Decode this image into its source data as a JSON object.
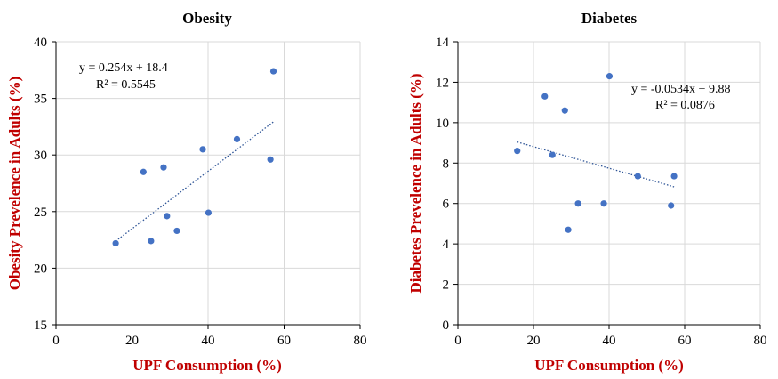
{
  "chart_data": [
    {
      "type": "scatter",
      "title": "Obesity",
      "xlabel": "UPF Consumption (%)",
      "ylabel": "Obesity Prevelence in Adults (%)",
      "xlim": [
        0,
        80
      ],
      "ylim": [
        15,
        40
      ],
      "xticks": [
        0,
        20,
        40,
        60,
        80
      ],
      "yticks": [
        15,
        20,
        25,
        30,
        35,
        40
      ],
      "grid": true,
      "points": [
        {
          "x": 15.7,
          "y": 22.2
        },
        {
          "x": 23.0,
          "y": 28.5
        },
        {
          "x": 25.0,
          "y": 22.4
        },
        {
          "x": 28.3,
          "y": 28.9
        },
        {
          "x": 29.2,
          "y": 24.6
        },
        {
          "x": 31.8,
          "y": 23.3
        },
        {
          "x": 38.6,
          "y": 30.5
        },
        {
          "x": 40.1,
          "y": 24.9
        },
        {
          "x": 47.6,
          "y": 31.4
        },
        {
          "x": 56.4,
          "y": 29.6
        },
        {
          "x": 57.2,
          "y": 37.4
        }
      ],
      "trendline": {
        "slope": 0.254,
        "intercept": 18.4,
        "x_range": [
          15.7,
          57.2
        ]
      },
      "equation": "y = 0.254x + 18.4",
      "r_squared": "R² = 0.5545"
    },
    {
      "type": "scatter",
      "title": "Diabetes",
      "xlabel": "UPF Consumption (%)",
      "ylabel": "Diabetes Prevelence in Adults (%)",
      "xlim": [
        0,
        80
      ],
      "ylim": [
        0,
        14
      ],
      "xticks": [
        0,
        20,
        40,
        60,
        80
      ],
      "yticks": [
        0,
        2,
        4,
        6,
        8,
        10,
        12,
        14
      ],
      "grid": true,
      "points": [
        {
          "x": 15.7,
          "y": 8.6
        },
        {
          "x": 23.0,
          "y": 11.3
        },
        {
          "x": 25.0,
          "y": 8.4
        },
        {
          "x": 28.3,
          "y": 10.6
        },
        {
          "x": 29.2,
          "y": 4.7
        },
        {
          "x": 31.8,
          "y": 6.0
        },
        {
          "x": 38.6,
          "y": 6.0
        },
        {
          "x": 40.1,
          "y": 12.3
        },
        {
          "x": 47.6,
          "y": 7.35
        },
        {
          "x": 56.4,
          "y": 5.9
        },
        {
          "x": 57.2,
          "y": 7.35
        }
      ],
      "trendline": {
        "slope": -0.0534,
        "intercept": 9.88,
        "x_range": [
          15.7,
          57.2
        ]
      },
      "equation": "y = -0.0534x + 9.88",
      "r_squared": "R² = 0.0876"
    }
  ]
}
